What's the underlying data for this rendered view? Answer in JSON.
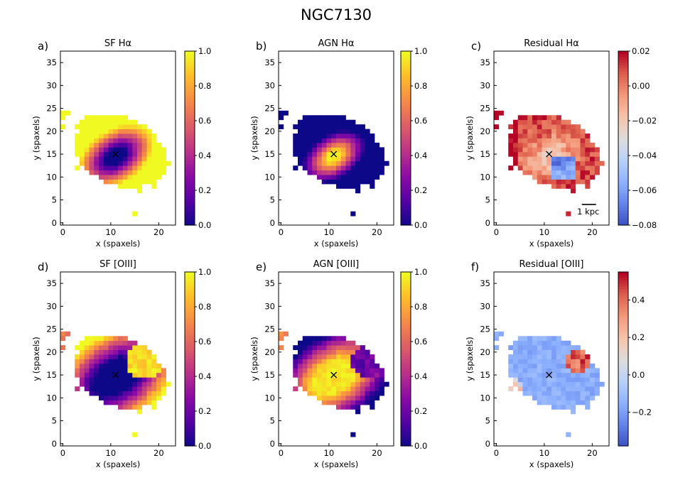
{
  "figure_title": "NGC7130",
  "chart_data": [
    {
      "type": "heatmap",
      "label": "a)",
      "title": "SF Hα",
      "xlabel": "x (spaxels)",
      "ylabel": "y (spaxels)",
      "xlim": [
        -0.5,
        23.5
      ],
      "ylim": [
        -0.5,
        37.5
      ],
      "xticks": [
        0,
        10,
        20
      ],
      "yticks": [
        0,
        5,
        10,
        15,
        20,
        25,
        30,
        35
      ],
      "cmap": "plasma",
      "vmin": 0.0,
      "vmax": 1.0,
      "cbar_ticks": [
        0.0,
        0.2,
        0.4,
        0.6,
        0.8,
        1.0
      ],
      "cbar_tick_labels": [
        "0.0",
        "0.2",
        "0.4",
        "0.6",
        "0.8",
        "1.0"
      ],
      "center": [
        11,
        15
      ],
      "pattern": "sf"
    },
    {
      "type": "heatmap",
      "label": "b)",
      "title": "AGN Hα",
      "xlabel": "x (spaxels)",
      "ylabel": "y (spaxels)",
      "xlim": [
        -0.5,
        23.5
      ],
      "ylim": [
        -0.5,
        37.5
      ],
      "xticks": [
        0,
        10,
        20
      ],
      "yticks": [
        0,
        5,
        10,
        15,
        20,
        25,
        30,
        35
      ],
      "cmap": "plasma",
      "vmin": 0.0,
      "vmax": 1.0,
      "cbar_ticks": [
        0.0,
        0.2,
        0.4,
        0.6,
        0.8,
        1.0
      ],
      "cbar_tick_labels": [
        "0.0",
        "0.2",
        "0.4",
        "0.6",
        "0.8",
        "1.0"
      ],
      "center": [
        11,
        15
      ],
      "pattern": "agn"
    },
    {
      "type": "heatmap",
      "label": "c)",
      "title": "Residual Hα",
      "xlabel": "x (spaxels)",
      "ylabel": "y (spaxels)",
      "xlim": [
        -0.5,
        23.5
      ],
      "ylim": [
        -0.5,
        37.5
      ],
      "xticks": [
        0,
        10,
        20
      ],
      "yticks": [
        0,
        5,
        10,
        15,
        20,
        25,
        30,
        35
      ],
      "cmap": "coolwarm",
      "vmin": -0.08,
      "vmax": 0.02,
      "cbar_ticks": [
        0.02,
        0.0,
        -0.02,
        -0.04,
        -0.06,
        -0.08
      ],
      "cbar_tick_labels": [
        "0.02",
        "0.00",
        "−0.02",
        "−0.04",
        "−0.06",
        "−0.08"
      ],
      "center": [
        11,
        15
      ],
      "pattern": "resha",
      "scalebar": "1 kpc"
    },
    {
      "type": "heatmap",
      "label": "d)",
      "title": "SF [OIII]",
      "xlabel": "x (spaxels)",
      "ylabel": "y (spaxels)",
      "xlim": [
        -0.5,
        23.5
      ],
      "ylim": [
        -0.5,
        37.5
      ],
      "xticks": [
        0,
        10,
        20
      ],
      "yticks": [
        0,
        5,
        10,
        15,
        20,
        25,
        30,
        35
      ],
      "cmap": "plasma",
      "vmin": 0.0,
      "vmax": 1.0,
      "cbar_ticks": [
        0.0,
        0.2,
        0.4,
        0.6,
        0.8,
        1.0
      ],
      "cbar_tick_labels": [
        "0.0",
        "0.2",
        "0.4",
        "0.6",
        "0.8",
        "1.0"
      ],
      "center": [
        11,
        15
      ],
      "pattern": "sfo"
    },
    {
      "type": "heatmap",
      "label": "e)",
      "title": "AGN [OIII]",
      "xlabel": "x (spaxels)",
      "ylabel": "y (spaxels)",
      "xlim": [
        -0.5,
        23.5
      ],
      "ylim": [
        -0.5,
        37.5
      ],
      "xticks": [
        0,
        10,
        20
      ],
      "yticks": [
        0,
        5,
        10,
        15,
        20,
        25,
        30,
        35
      ],
      "cmap": "plasma",
      "vmin": 0.0,
      "vmax": 1.0,
      "cbar_ticks": [
        0.0,
        0.2,
        0.4,
        0.6,
        0.8,
        1.0
      ],
      "cbar_tick_labels": [
        "0.0",
        "0.2",
        "0.4",
        "0.6",
        "0.8",
        "1.0"
      ],
      "center": [
        11,
        15
      ],
      "pattern": "agno"
    },
    {
      "type": "heatmap",
      "label": "f)",
      "title": "Residual [OIII]",
      "xlabel": "x (spaxels)",
      "ylabel": "y (spaxels)",
      "xlim": [
        -0.5,
        23.5
      ],
      "ylim": [
        -0.5,
        37.5
      ],
      "xticks": [
        0,
        10,
        20
      ],
      "yticks": [
        0,
        5,
        10,
        15,
        20,
        25,
        30,
        35
      ],
      "cmap": "coolwarm",
      "vmin": -0.38,
      "vmax": 0.55,
      "cbar_ticks": [
        0.4,
        0.2,
        0.0,
        -0.2
      ],
      "cbar_tick_labels": [
        "0.4",
        "0.2",
        "0.0",
        "−0.2"
      ],
      "center": [
        11,
        15
      ],
      "pattern": "reso"
    }
  ]
}
